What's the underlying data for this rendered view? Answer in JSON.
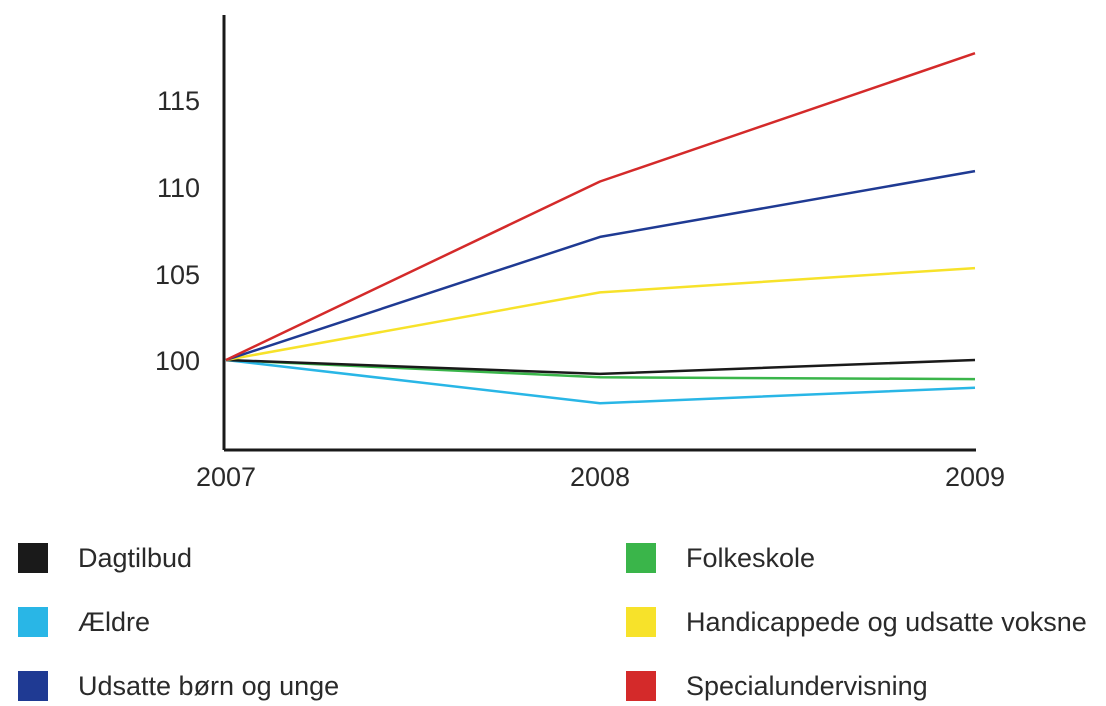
{
  "chart_data": {
    "type": "line",
    "x": [
      "2007",
      "2008",
      "2009"
    ],
    "ylim": [
      95,
      120
    ],
    "yticks": [
      "100",
      "105",
      "110",
      "115"
    ],
    "grid": false,
    "legend_placement": "bottom",
    "series": [
      {
        "name": "Dagtilbud",
        "color": "#1a1a1a",
        "values": [
          100,
          99.2,
          100
        ]
      },
      {
        "name": "Ældre",
        "color": "#29b6e6",
        "values": [
          100,
          97.5,
          98.4
        ]
      },
      {
        "name": "Udsatte børn og unge",
        "color": "#1f3a93",
        "values": [
          100,
          107.1,
          110.9
        ]
      },
      {
        "name": "Folkeskole",
        "color": "#3ab54a",
        "values": [
          100,
          99,
          98.9
        ]
      },
      {
        "name": "Handicappede og udsatte voksne",
        "color": "#f7e22a",
        "values": [
          100,
          103.9,
          105.3
        ]
      },
      {
        "name": "Specialundervisning",
        "color": "#d42a2a",
        "values": [
          100,
          110.3,
          117.7
        ]
      }
    ]
  }
}
